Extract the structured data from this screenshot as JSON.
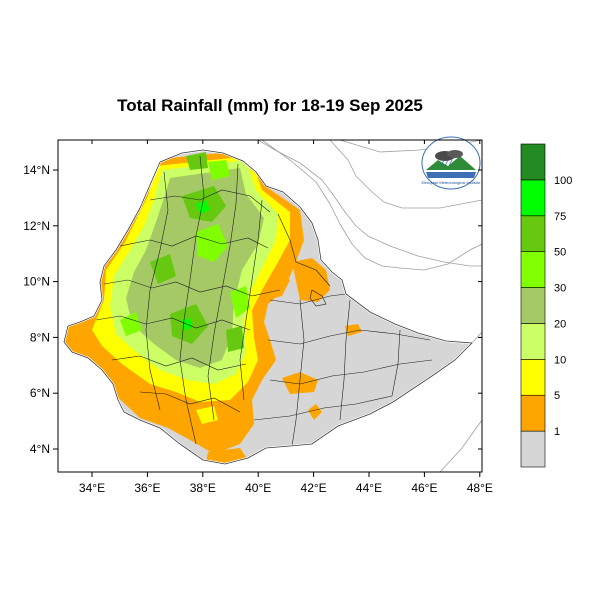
{
  "title": "Total Rainfall (mm) for 18-19 Sep 2025",
  "map": {
    "lat_ticks": [
      "14°N",
      "12°N",
      "10°N",
      "8°N",
      "6°N",
      "4°N"
    ],
    "lon_ticks": [
      "34°E",
      "36°E",
      "38°E",
      "40°E",
      "42°E",
      "44°E",
      "46°E",
      "48°E"
    ],
    "lon_range": [
      33,
      48.5
    ],
    "lat_range": [
      3.2,
      15.0
    ]
  },
  "legend": {
    "colors": [
      "#d6d6d6",
      "#ffa500",
      "#ffff00",
      "#ccff66",
      "#a5c965",
      "#7fff00",
      "#66c80f",
      "#00ff00",
      "#228b22"
    ],
    "labels": [
      "1",
      "5",
      "10",
      "20",
      "30",
      "50",
      "75",
      "100"
    ]
  },
  "logo": {
    "name": "ethiopian-meteorology-institute-logo",
    "text": "Ethiopian Meteorological Institute"
  },
  "icons": [
    "map-icon",
    "logo-icon"
  ]
}
